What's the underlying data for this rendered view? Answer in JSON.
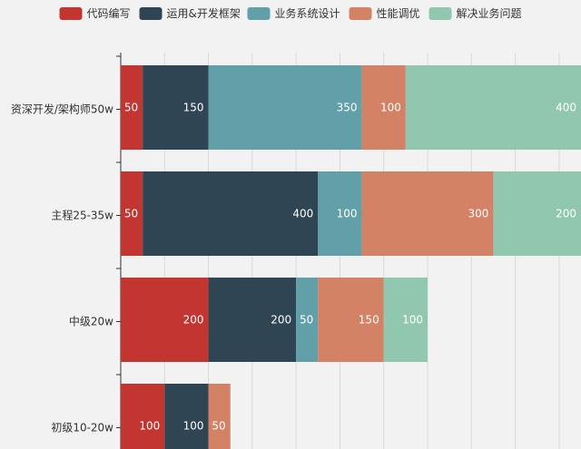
{
  "chart_data": {
    "type": "bar",
    "orientation": "horizontal",
    "stacked": true,
    "categories": [
      "资深开发/架构师50w",
      "主程25-35w",
      "中级20w",
      "初级10-20w"
    ],
    "series": [
      {
        "name": "代码编写",
        "color": "#c23531",
        "values": [
          50,
          50,
          200,
          100
        ]
      },
      {
        "name": "运用&开发框架",
        "color": "#2f4554",
        "values": [
          150,
          400,
          200,
          100
        ]
      },
      {
        "name": "业务系统设计",
        "color": "#61a0a8",
        "values": [
          350,
          100,
          50,
          0
        ]
      },
      {
        "name": "性能调优",
        "color": "#d48265",
        "values": [
          100,
          300,
          150,
          50
        ]
      },
      {
        "name": "解决业务问题",
        "color": "#91c7ae",
        "values": [
          400,
          200,
          100,
          0
        ]
      }
    ],
    "xlim": [
      0,
      1050
    ],
    "grid": true,
    "legend": "top"
  }
}
